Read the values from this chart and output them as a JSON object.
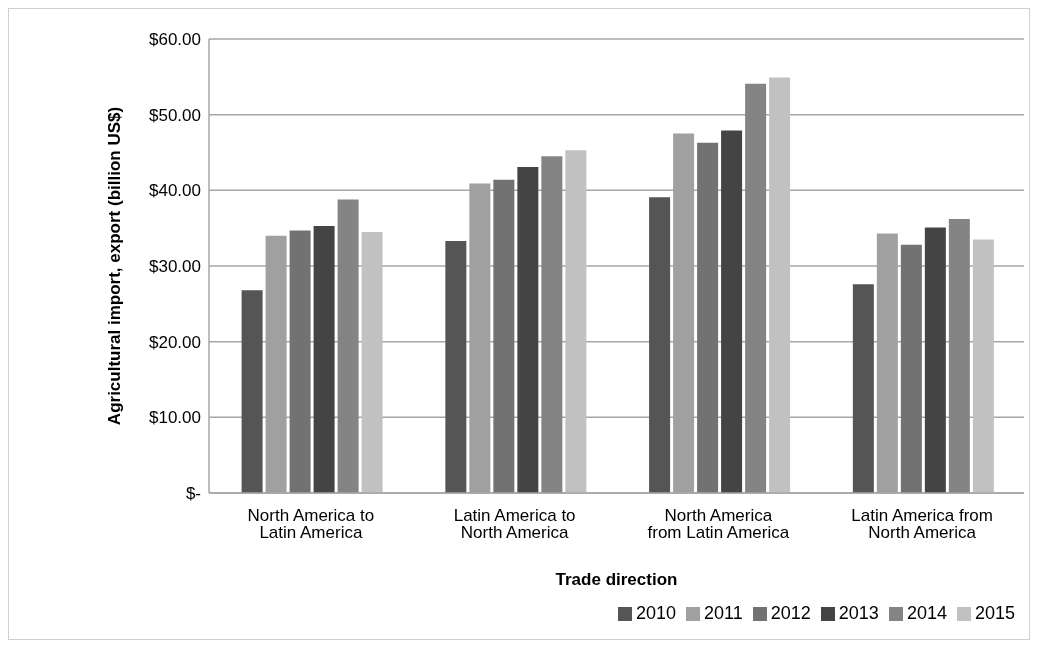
{
  "chart_data": {
    "type": "bar",
    "xlabel": "Trade direction",
    "ylabel": "Agricultural import, export (billion US$)",
    "categories": [
      "North America to Latin America",
      "Latin America to North America",
      "North America from Latin America",
      "Latin America from North America"
    ],
    "series": [
      {
        "name": "2010",
        "color": "#555555",
        "values": [
          26.8,
          33.3,
          39.1,
          27.6
        ]
      },
      {
        "name": "2011",
        "color": "#a0a0a0",
        "values": [
          34.0,
          40.9,
          47.5,
          34.3
        ]
      },
      {
        "name": "2012",
        "color": "#727272",
        "values": [
          34.7,
          41.4,
          46.3,
          32.8
        ]
      },
      {
        "name": "2013",
        "color": "#444444",
        "values": [
          35.3,
          43.1,
          47.9,
          35.1
        ]
      },
      {
        "name": "2014",
        "color": "#848484",
        "values": [
          38.8,
          44.5,
          54.1,
          36.2
        ]
      },
      {
        "name": "2015",
        "color": "#c1c1c1",
        "values": [
          34.5,
          45.3,
          54.9,
          33.5
        ]
      }
    ],
    "ylim": [
      0,
      60
    ],
    "yticks": [
      {
        "value": 0,
        "label": "$-"
      },
      {
        "value": 10,
        "label": "$10.00"
      },
      {
        "value": 20,
        "label": "$20.00"
      },
      {
        "value": 30,
        "label": "$30.00"
      },
      {
        "value": 40,
        "label": "$40.00"
      },
      {
        "value": 50,
        "label": "$50.00"
      },
      {
        "value": 60,
        "label": "$60.00"
      }
    ],
    "grid": "y",
    "legend": "bottom"
  }
}
